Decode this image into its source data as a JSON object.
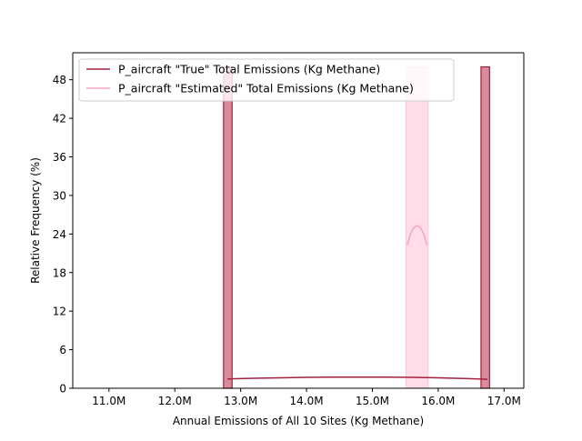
{
  "chart_data": {
    "type": "bar",
    "title": "",
    "xlabel": "Annual Emissions of All 10 Sites (Kg Methane)",
    "ylabel": "Relative Frequency (%)",
    "xlim": [
      10.45,
      17.3
    ],
    "ylim": [
      0,
      52.2
    ],
    "x_tick_values": [
      11,
      12,
      13,
      14,
      15,
      16,
      17
    ],
    "x_ticks": [
      "11.0M",
      "12.0M",
      "13.0M",
      "14.0M",
      "15.0M",
      "16.0M",
      "17.0M"
    ],
    "y_ticks": [
      0,
      6,
      12,
      18,
      24,
      30,
      36,
      42,
      48
    ],
    "grid": false,
    "legend_position": "top-left",
    "series": [
      {
        "name": "P_aircraft \"True\" Total Emissions (Kg Methane)",
        "color": "#a3213f",
        "fill": "#d98a9b",
        "bars": [
          {
            "x0": 12.74,
            "x1": 12.87,
            "value": 50
          },
          {
            "x0": 16.65,
            "x1": 16.78,
            "value": 50
          }
        ],
        "kde_x": [
          12.8,
          13.2,
          13.6,
          14.0,
          14.4,
          14.8,
          15.2,
          15.6,
          16.0,
          16.4,
          16.75
        ],
        "kde_y": [
          1.45,
          1.55,
          1.63,
          1.7,
          1.73,
          1.74,
          1.73,
          1.7,
          1.63,
          1.52,
          1.4
        ]
      },
      {
        "name": "P_aircraft \"Estimated\" Total Emissions (Kg Methane)",
        "color": "#f4a3c0",
        "fill": "#ffdce8",
        "bars": [
          {
            "x0": 15.51,
            "x1": 15.85,
            "value": 50
          }
        ],
        "kde_x": [
          15.53,
          15.58,
          15.63,
          15.68,
          15.73,
          15.78,
          15.83
        ],
        "kde_y": [
          22.3,
          24.0,
          25.0,
          25.3,
          25.0,
          24.0,
          22.3
        ]
      }
    ]
  }
}
